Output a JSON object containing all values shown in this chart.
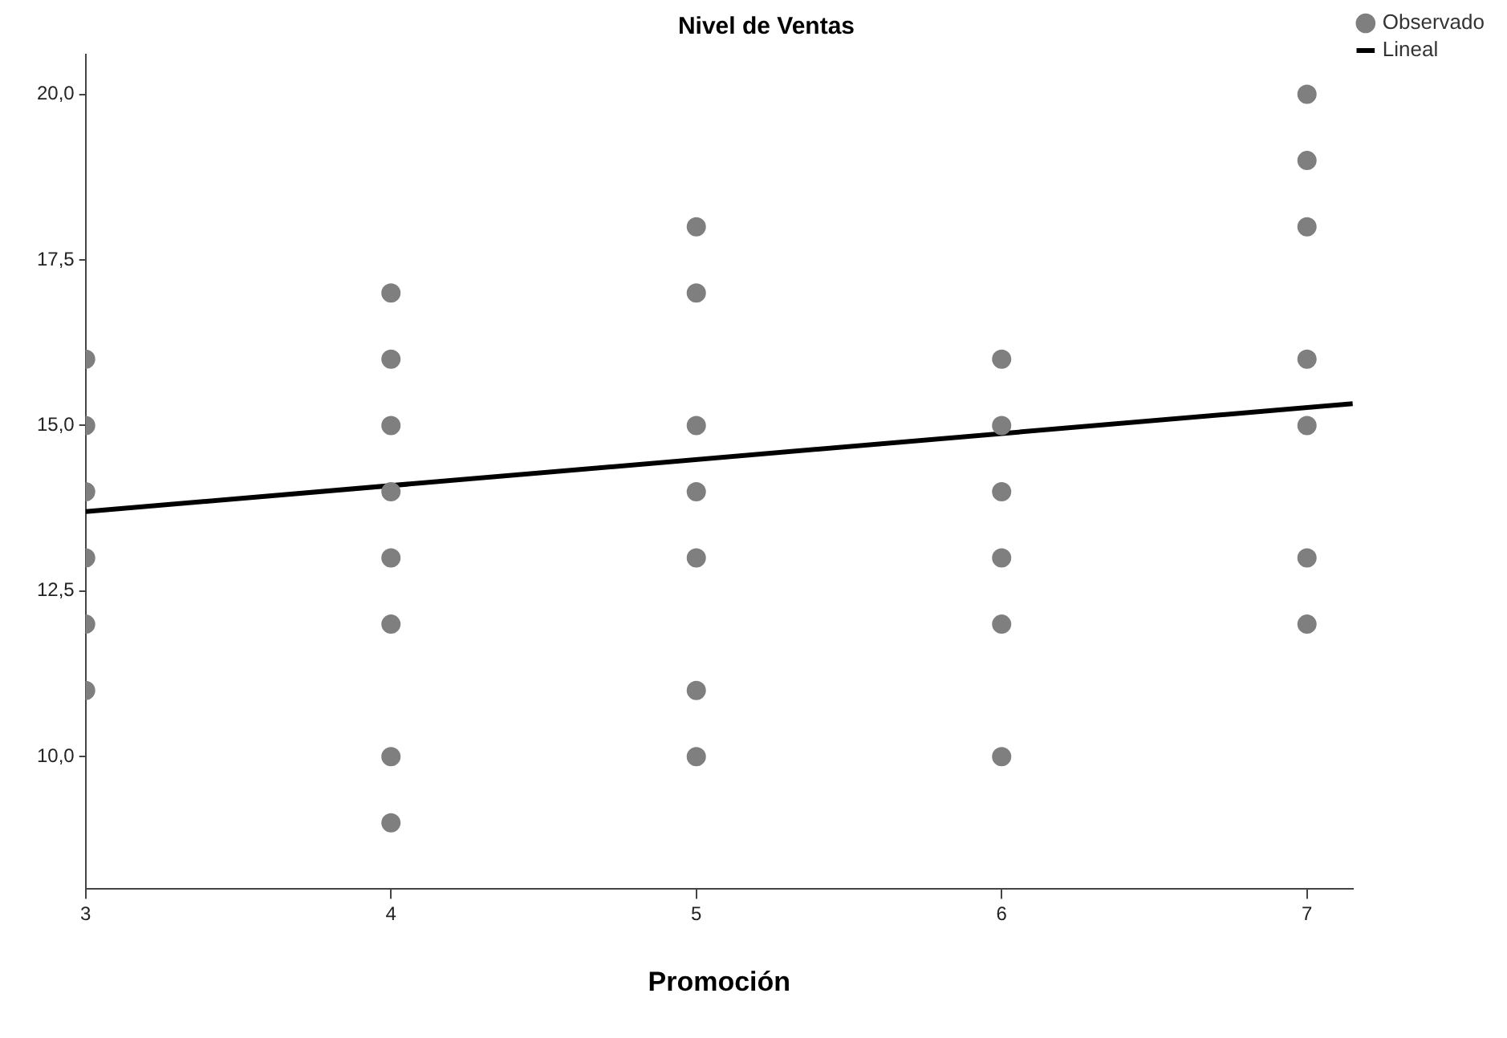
{
  "chart_data": {
    "type": "scatter",
    "title": "Nivel de Ventas",
    "xlabel": "Promoción",
    "xlim": [
      3,
      7.15
    ],
    "ylim": [
      8.0,
      20.6
    ],
    "xticks": [
      3,
      4,
      5,
      6,
      7
    ],
    "yticks": [
      {
        "value": 10,
        "label": "10,0"
      },
      {
        "value": 12.5,
        "label": "12,5"
      },
      {
        "value": 15,
        "label": "15,0"
      },
      {
        "value": 17.5,
        "label": "17,5"
      },
      {
        "value": 20,
        "label": "20,0"
      }
    ],
    "grid": false,
    "legend": "top right",
    "series": [
      {
        "name": "Observado",
        "marker": "circle",
        "color": "#7f7f7f",
        "x": [
          3,
          3,
          3,
          3,
          3,
          3,
          4,
          4,
          4,
          4,
          4,
          4,
          4,
          4,
          5,
          5,
          5,
          5,
          5,
          5,
          5,
          6,
          6,
          6,
          6,
          6,
          6,
          7,
          7,
          7,
          7,
          7,
          7,
          7
        ],
        "values": [
          16,
          15,
          14,
          13,
          12,
          11,
          17,
          16,
          15,
          14,
          13,
          12,
          10,
          9,
          18,
          17,
          15,
          14,
          13,
          11,
          10,
          16,
          15,
          14,
          13,
          12,
          10,
          20,
          19,
          18,
          16,
          15,
          13,
          12
        ]
      },
      {
        "name": "Lineal",
        "type": "line",
        "color": "#000000",
        "line_style": "solid",
        "x": [
          3,
          7.15
        ],
        "values": [
          13.7,
          15.33
        ]
      }
    ]
  }
}
